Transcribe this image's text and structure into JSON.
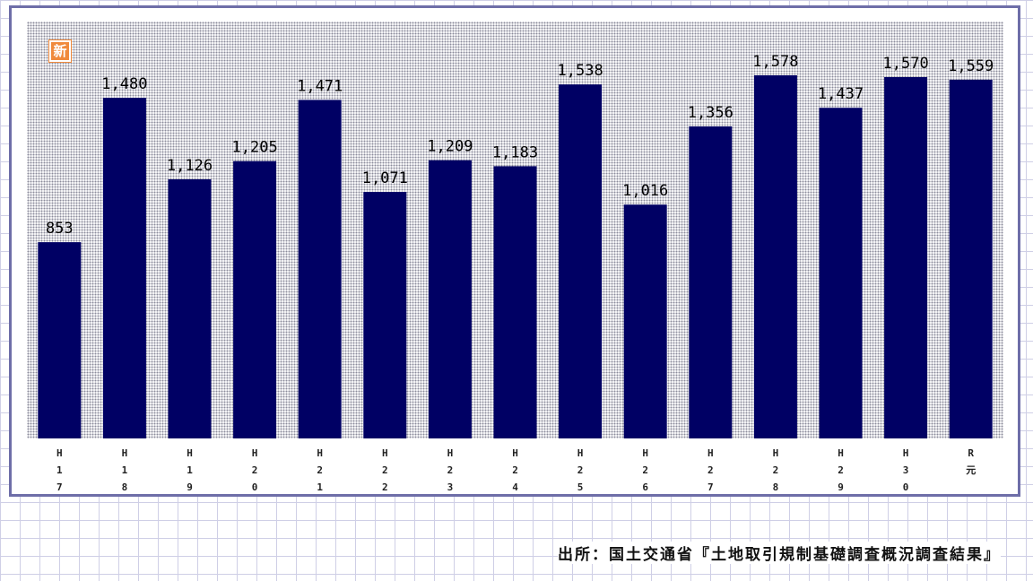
{
  "badge": {
    "label": "新"
  },
  "source_note": "出所：国土交通省『土地取引規制基礎調査概況調査結果』",
  "colors": {
    "bar": "#000064",
    "frame": "#6e6ea8",
    "badge": "#f08a3c"
  },
  "chart_data": {
    "type": "bar",
    "categories": [
      "H17",
      "H18",
      "H19",
      "H20",
      "H21",
      "H22",
      "H23",
      "H24",
      "H25",
      "H26",
      "H27",
      "H28",
      "H29",
      "H30",
      "R元"
    ],
    "values": [
      853,
      1480,
      1126,
      1205,
      1471,
      1071,
      1209,
      1183,
      1538,
      1016,
      1356,
      1578,
      1437,
      1570,
      1559
    ],
    "value_labels": [
      "853",
      "1,480",
      "1,126",
      "1,205",
      "1,471",
      "1,071",
      "1,209",
      "1,183",
      "1,538",
      "1,016",
      "1,356",
      "1,578",
      "1,437",
      "1,570",
      "1,559"
    ],
    "title": "",
    "xlabel": "",
    "ylabel": "",
    "ylim": [
      0,
      1800
    ],
    "grid": false,
    "legend": "none"
  }
}
